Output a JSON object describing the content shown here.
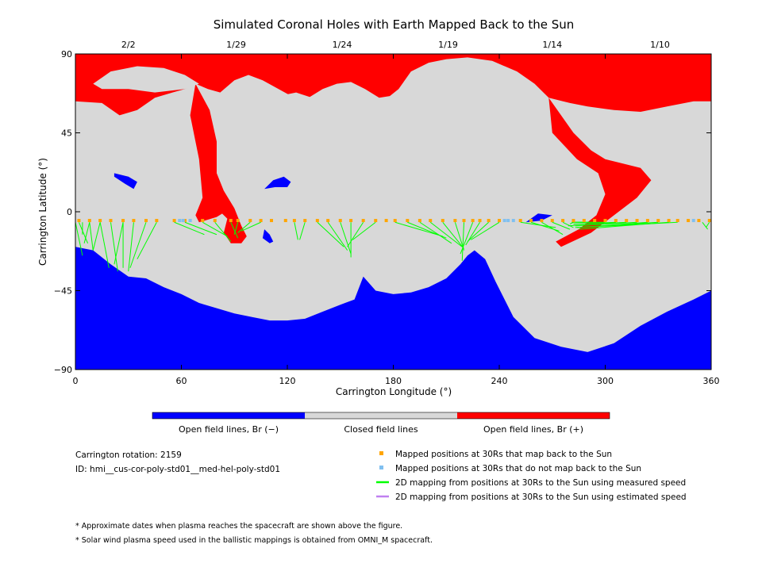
{
  "chart_data": {
    "type": "map",
    "title": "Simulated Coronal Holes with Earth Mapped Back to the Sun",
    "xlabel": "Carrington Longitude (°)",
    "ylabel": "Carrington Latitude (°)",
    "xlim": [
      0,
      360
    ],
    "ylim": [
      -90,
      90
    ],
    "x_ticks": [
      "0",
      "60",
      "120",
      "180",
      "240",
      "300",
      "360"
    ],
    "y_ticks": [
      "90",
      "45",
      "0",
      "−45",
      "−90"
    ],
    "top_date_ticks": [
      {
        "label": "2/2",
        "lon": 30
      },
      {
        "label": "1/29",
        "lon": 91
      },
      {
        "label": "1/24",
        "lon": 151
      },
      {
        "label": "1/19",
        "lon": 211
      },
      {
        "label": "1/14",
        "lon": 270
      },
      {
        "label": "1/10",
        "lon": 331
      }
    ],
    "colorbar": [
      {
        "label": "Open field lines, Br (−)",
        "color": "#0000ff"
      },
      {
        "label": "Closed field lines",
        "color": "#d8d8d8"
      },
      {
        "label": "Open field lines, Br (+)",
        "color": "#ff0000"
      }
    ],
    "regions": {
      "neg_polar_boundary": [
        [
          0,
          -20
        ],
        [
          10,
          -22
        ],
        [
          20,
          -30
        ],
        [
          30,
          -37
        ],
        [
          40,
          -38
        ],
        [
          50,
          -43
        ],
        [
          60,
          -47
        ],
        [
          70,
          -52
        ],
        [
          80,
          -55
        ],
        [
          90,
          -58
        ],
        [
          100,
          -60
        ],
        [
          110,
          -62
        ],
        [
          120,
          -62
        ],
        [
          130,
          -61
        ],
        [
          140,
          -57
        ],
        [
          150,
          -53
        ],
        [
          158,
          -50
        ],
        [
          163,
          -37
        ],
        [
          170,
          -45
        ],
        [
          180,
          -47
        ],
        [
          190,
          -46
        ],
        [
          200,
          -43
        ],
        [
          210,
          -38
        ],
        [
          218,
          -30
        ],
        [
          222,
          -25
        ],
        [
          226,
          -22
        ],
        [
          232,
          -27
        ],
        [
          238,
          -40
        ],
        [
          248,
          -60
        ],
        [
          260,
          -72
        ],
        [
          275,
          -77
        ],
        [
          290,
          -80
        ],
        [
          305,
          -75
        ],
        [
          320,
          -65
        ],
        [
          335,
          -57
        ],
        [
          350,
          -50
        ],
        [
          360,
          -45
        ]
      ],
      "pos_polar_boundary": [
        [
          0,
          63
        ],
        [
          15,
          62
        ],
        [
          25,
          55
        ],
        [
          35,
          58
        ],
        [
          45,
          65
        ],
        [
          55,
          68
        ],
        [
          62,
          70
        ],
        [
          68,
          73
        ],
        [
          75,
          70
        ],
        [
          82,
          68
        ],
        [
          90,
          75
        ],
        [
          98,
          78
        ],
        [
          106,
          75
        ],
        [
          115,
          70
        ],
        [
          124,
          65
        ],
        [
          132,
          65
        ],
        [
          140,
          70
        ],
        [
          148,
          73
        ],
        [
          156,
          74
        ],
        [
          164,
          70
        ],
        [
          172,
          65
        ],
        [
          178,
          66
        ],
        [
          183,
          70
        ],
        [
          190,
          80
        ],
        [
          200,
          85
        ],
        [
          210,
          87
        ],
        [
          222,
          88
        ],
        [
          236,
          86
        ],
        [
          250,
          80
        ],
        [
          260,
          73
        ],
        [
          268,
          65
        ],
        [
          280,
          62
        ],
        [
          290,
          60
        ],
        [
          305,
          58
        ],
        [
          320,
          57
        ],
        [
          335,
          60
        ],
        [
          350,
          63
        ],
        [
          360,
          63
        ]
      ],
      "pos_extensions": [
        [
          [
            68,
            73
          ],
          [
            76,
            58
          ],
          [
            80,
            40
          ],
          [
            80,
            22
          ],
          [
            84,
            12
          ],
          [
            88,
            2
          ],
          [
            80,
            -3
          ],
          [
            70,
            -6
          ],
          [
            68,
            -2
          ],
          [
            72,
            8
          ],
          [
            70,
            30
          ],
          [
            65,
            55
          ]
        ],
        [
          [
            84,
            12
          ],
          [
            90,
            2
          ],
          [
            94,
            -8
          ],
          [
            97,
            -14
          ],
          [
            94,
            -18
          ],
          [
            88,
            -18
          ],
          [
            84,
            -12
          ],
          [
            86,
            -4
          ],
          [
            80,
            2
          ],
          [
            84,
            8
          ]
        ],
        [
          [
            268,
            65
          ],
          [
            282,
            45
          ],
          [
            292,
            35
          ],
          [
            300,
            30
          ],
          [
            308,
            28
          ],
          [
            320,
            25
          ],
          [
            326,
            18
          ],
          [
            318,
            8
          ],
          [
            305,
            -2
          ],
          [
            292,
            -12
          ],
          [
            275,
            -20
          ],
          [
            272,
            -17
          ],
          [
            285,
            -10
          ],
          [
            295,
            -2
          ],
          [
            300,
            10
          ],
          [
            296,
            22
          ],
          [
            284,
            30
          ],
          [
            270,
            45
          ]
        ]
      ],
      "neg_blobs": [
        [
          [
            22,
            22
          ],
          [
            30,
            20
          ],
          [
            35,
            17
          ],
          [
            33,
            13
          ],
          [
            28,
            16
          ],
          [
            22,
            20
          ]
        ],
        [
          [
            107,
            -10
          ],
          [
            110,
            -13
          ],
          [
            112,
            -17
          ],
          [
            110,
            -18
          ],
          [
            106,
            -15
          ]
        ],
        [
          [
            112,
            18
          ],
          [
            118,
            20
          ],
          [
            122,
            17
          ],
          [
            120,
            14
          ],
          [
            113,
            14
          ],
          [
            107,
            13
          ]
        ],
        [
          [
            255,
            -6
          ],
          [
            264,
            -5
          ],
          [
            270,
            -2
          ],
          [
            262,
            -1
          ]
        ]
      ],
      "closed_islands": [
        [
          [
            10,
            73
          ],
          [
            20,
            80
          ],
          [
            35,
            83
          ],
          [
            50,
            82
          ],
          [
            62,
            78
          ],
          [
            70,
            73
          ],
          [
            62,
            70
          ],
          [
            45,
            68
          ],
          [
            30,
            70
          ],
          [
            15,
            70
          ]
        ],
        [
          [
            108,
            60
          ],
          [
            115,
            66
          ],
          [
            125,
            68
          ],
          [
            134,
            65
          ],
          [
            132,
            58
          ],
          [
            122,
            56
          ],
          [
            112,
            58
          ]
        ]
      ]
    },
    "mapped_positions_30Rs": {
      "label": "Mapped positions at 30Rs that map back to the Sun",
      "color": "#ffa500",
      "lat": -5,
      "lon": [
        2,
        8,
        14,
        20,
        27,
        33,
        40,
        46,
        56,
        62,
        72,
        79,
        88,
        92,
        99,
        105,
        111,
        119,
        124,
        130,
        137,
        143,
        150,
        156,
        163,
        170,
        176,
        181,
        188,
        195,
        201,
        208,
        215,
        220,
        225,
        229,
        234,
        240,
        252,
        258,
        264,
        270,
        276,
        282,
        288,
        294,
        300,
        306,
        312,
        318,
        324,
        330,
        336,
        341,
        347,
        353,
        359
      ]
    },
    "unmapped_positions_30Rs": {
      "label": "Mapped positions at 30Rs that do not map back to the Sun",
      "color": "#80c0f0",
      "lat": -5,
      "lon": [
        59,
        61,
        65,
        243,
        245,
        248,
        350
      ]
    },
    "mapping_lines_measured": {
      "label": "2D mapping from positions at 30Rs to the Sun using measured speed",
      "color": "#00ff00",
      "segments": [
        [
          0,
          -6,
          4,
          -25
        ],
        [
          2,
          -6,
          7,
          -18
        ],
        [
          4,
          -6,
          4,
          -13
        ],
        [
          8,
          -6,
          5,
          -18
        ],
        [
          8,
          -6,
          10,
          -22
        ],
        [
          14,
          -6,
          19,
          -32
        ],
        [
          14,
          -6,
          10,
          -22
        ],
        [
          20,
          -6,
          24,
          -34
        ],
        [
          27,
          -6,
          22,
          -30
        ],
        [
          27,
          -6,
          27,
          -32
        ],
        [
          33,
          -6,
          30,
          -34
        ],
        [
          40,
          -6,
          31,
          -32
        ],
        [
          46,
          -6,
          35,
          -27
        ],
        [
          56,
          -6,
          73,
          -13
        ],
        [
          62,
          -6,
          80,
          -13
        ],
        [
          72,
          -6,
          86,
          -14
        ],
        [
          79,
          -6,
          88,
          -17
        ],
        [
          88,
          -6,
          92,
          -15
        ],
        [
          92,
          -6,
          90,
          -13
        ],
        [
          99,
          -6,
          92,
          -12
        ],
        [
          105,
          -6,
          94,
          -11
        ],
        [
          124,
          -6,
          126,
          -16
        ],
        [
          130,
          -6,
          127,
          -16
        ],
        [
          137,
          -6,
          152,
          -20
        ],
        [
          143,
          -6,
          154,
          -22
        ],
        [
          150,
          -6,
          156,
          -24
        ],
        [
          156,
          -6,
          156,
          -26
        ],
        [
          163,
          -6,
          154,
          -20
        ],
        [
          170,
          -6,
          157,
          -16
        ],
        [
          181,
          -6,
          208,
          -14
        ],
        [
          188,
          -6,
          210,
          -15
        ],
        [
          195,
          -6,
          213,
          -18
        ],
        [
          201,
          -6,
          219,
          -20
        ],
        [
          208,
          -6,
          220,
          -21
        ],
        [
          215,
          -6,
          220,
          -22
        ],
        [
          220,
          -6,
          219,
          -28
        ],
        [
          225,
          -6,
          218,
          -24
        ],
        [
          229,
          -6,
          221,
          -19
        ],
        [
          234,
          -6,
          222,
          -17
        ],
        [
          240,
          -6,
          224,
          -16
        ],
        [
          252,
          -6,
          272,
          -9
        ],
        [
          258,
          -6,
          274,
          -11
        ],
        [
          264,
          -6,
          276,
          -13
        ],
        [
          270,
          -6,
          280,
          -10
        ],
        [
          276,
          -6,
          282,
          -9
        ],
        [
          282,
          -6,
          280,
          -7
        ],
        [
          288,
          -6,
          281,
          -6
        ],
        [
          294,
          -6,
          282,
          -6
        ],
        [
          300,
          -6,
          283,
          -6
        ],
        [
          306,
          -6,
          282,
          -7
        ],
        [
          312,
          -6,
          279,
          -8
        ],
        [
          318,
          -6,
          283,
          -8
        ],
        [
          324,
          -6,
          286,
          -9
        ],
        [
          330,
          -6,
          283,
          -9
        ],
        [
          336,
          -6,
          285,
          -10
        ],
        [
          341,
          -6,
          284,
          -9
        ],
        [
          355,
          -6,
          358,
          -10
        ],
        [
          359,
          -6,
          357,
          -9
        ]
      ]
    },
    "mapping_lines_estimated": {
      "label": "2D mapping from positions at 30Rs to the Sun using estimated speed",
      "color": "#c080f0",
      "segments": []
    }
  },
  "info": {
    "rotation": "Carrington rotation: 2159",
    "id": "ID: hmi__cus-cor-poly-std01__med-hel-poly-std01"
  },
  "legend": [
    {
      "label": "Mapped positions at 30Rs that map back to the Sun",
      "color": "#ffa500",
      "kind": "square"
    },
    {
      "label": "Mapped positions at 30Rs that do not map back to the Sun",
      "color": "#80c0f0",
      "kind": "square"
    },
    {
      "label": "2D mapping from positions at 30Rs to the Sun using measured speed",
      "color": "#00ff00",
      "kind": "line"
    },
    {
      "label": "2D mapping from positions at 30Rs to the Sun using estimated speed",
      "color": "#c080f0",
      "kind": "line"
    }
  ],
  "notes": [
    "* Approximate dates when plasma reaches the spacecraft are shown above the figure.",
    "* Solar wind plasma speed used in the ballistic mappings is obtained from OMNI_M spacecraft."
  ],
  "colors": {
    "closed": "#d8d8d8",
    "negative": "#0000ff",
    "positive": "#ff0000"
  }
}
